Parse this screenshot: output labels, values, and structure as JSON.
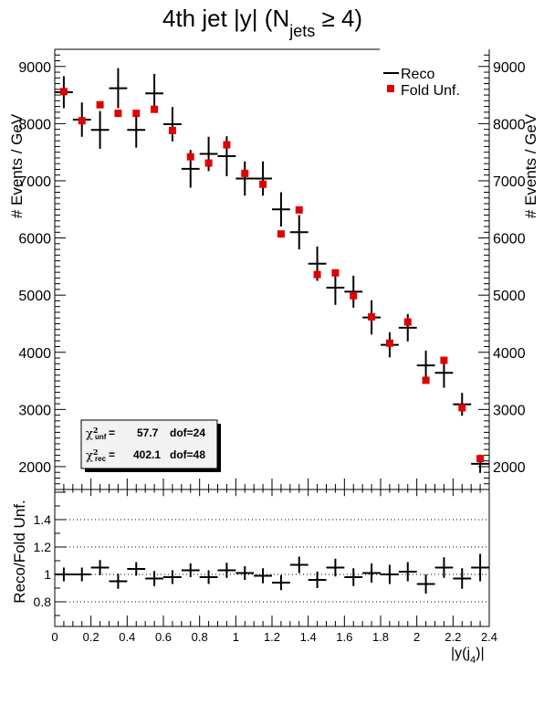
{
  "chart_data": [
    {
      "type": "scatter",
      "title": "4th jet |y| (N",
      "title_sub": "jets",
      "title_tail": " ≥ 4)",
      "ylabel": "# Events / GeV",
      "xlim": [
        0,
        2.4
      ],
      "ylim": [
        1600,
        9300
      ],
      "yticks": [
        2000,
        3000,
        4000,
        5000,
        6000,
        7000,
        8000,
        9000
      ],
      "legend_position": "top-right",
      "colors": {
        "reco": "#000000",
        "fold": "#e00000"
      },
      "x": [
        0.05,
        0.15,
        0.25,
        0.35,
        0.45,
        0.55,
        0.65,
        0.75,
        0.85,
        0.95,
        1.05,
        1.15,
        1.25,
        1.35,
        1.45,
        1.55,
        1.65,
        1.75,
        1.85,
        1.95,
        2.05,
        2.15,
        2.25,
        2.35
      ],
      "series": [
        {
          "name": "Reco",
          "style": "cross",
          "values": [
            8550,
            8070,
            7890,
            8620,
            7890,
            8530,
            7990,
            7210,
            7470,
            7430,
            7040,
            7040,
            6500,
            6100,
            5550,
            5130,
            5060,
            4610,
            4130,
            4430,
            3770,
            3640,
            3090,
            2050
          ],
          "errors": [
            280,
            300,
            330,
            350,
            310,
            340,
            300,
            330,
            300,
            350,
            300,
            300,
            300,
            300,
            300,
            300,
            280,
            300,
            220,
            240,
            260,
            260,
            200,
            160
          ]
        },
        {
          "name": "Fold Unf.",
          "style": "square",
          "values": [
            8560,
            8050,
            8330,
            8180,
            8180,
            8250,
            7880,
            7420,
            7310,
            7630,
            7130,
            6940,
            6070,
            6490,
            5360,
            5390,
            4990,
            4620,
            4160,
            4530,
            3510,
            3860,
            3030,
            2140
          ]
        }
      ],
      "stats": [
        {
          "label": "χ",
          "sup": "2",
          "sub": "unf",
          "eq": " =",
          "value": "57.7",
          "dof": "dof=24"
        },
        {
          "label": "χ",
          "sup": "2",
          "sub": "rec",
          "eq": " =",
          "value": "402.1",
          "dof": "dof=48"
        }
      ]
    },
    {
      "type": "scatter",
      "ylabel": "Reco/Fold Unf.",
      "xlabel": "|y(j",
      "xlabel_sub": "4",
      "xlabel_tail": ")|",
      "xlim": [
        0,
        2.4
      ],
      "ylim": [
        0.62,
        1.62
      ],
      "yticks": [
        "0.8",
        "1",
        "1.2",
        "1.4"
      ],
      "xticks": [
        "0",
        "0.2",
        "0.4",
        "0.6",
        "0.8",
        "1",
        "1.2",
        "1.4",
        "1.6",
        "1.8",
        "2",
        "2.2",
        "2.4"
      ],
      "dotted_lines": [
        0.8,
        1.0,
        1.2,
        1.4
      ],
      "x": [
        0.05,
        0.15,
        0.25,
        0.35,
        0.45,
        0.55,
        0.65,
        0.75,
        0.85,
        0.95,
        1.05,
        1.15,
        1.25,
        1.35,
        1.45,
        1.55,
        1.65,
        1.75,
        1.85,
        1.95,
        2.05,
        2.15,
        2.25,
        2.35
      ],
      "series": [
        {
          "name": "Reco/Fold Unf.",
          "values": [
            1.0,
            1.0,
            1.05,
            0.95,
            1.04,
            0.97,
            0.98,
            1.03,
            0.98,
            1.03,
            1.01,
            0.99,
            0.94,
            1.07,
            0.96,
            1.05,
            0.98,
            1.01,
            1.0,
            1.02,
            0.93,
            1.05,
            0.97,
            1.05
          ],
          "errors": [
            0.05,
            0.05,
            0.055,
            0.055,
            0.05,
            0.055,
            0.05,
            0.05,
            0.05,
            0.055,
            0.05,
            0.055,
            0.055,
            0.06,
            0.06,
            0.065,
            0.065,
            0.07,
            0.07,
            0.07,
            0.07,
            0.075,
            0.075,
            0.1
          ]
        }
      ]
    }
  ]
}
